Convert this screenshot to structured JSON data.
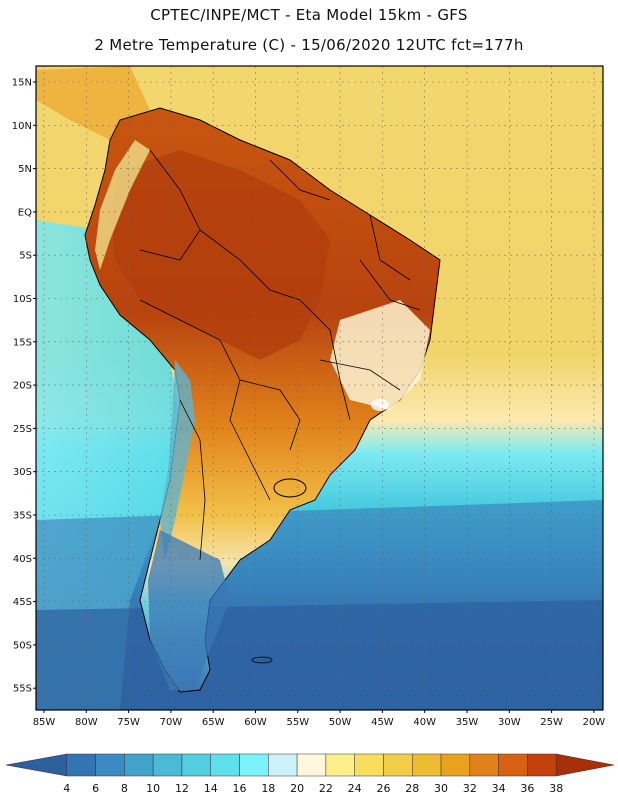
{
  "header": {
    "title_line1": "CPTEC/INPE/MCT -   Eta Model 15km - GFS",
    "title_line2": "2 Metre Temperature (C) - 15/06/2020 12UTC fct=177h"
  },
  "map": {
    "lat_labels": [
      "15N",
      "10N",
      "5N",
      "EQ",
      "5S",
      "10S",
      "15S",
      "20S",
      "25S",
      "30S",
      "35S",
      "40S",
      "45S",
      "50S",
      "55S"
    ],
    "lon_labels": [
      "85W",
      "80W",
      "75W",
      "70W",
      "65W",
      "60W",
      "55W",
      "50W",
      "45W",
      "40W",
      "35W",
      "30W",
      "25W",
      "20W"
    ]
  },
  "colorbar": {
    "values": [
      "4",
      "6",
      "8",
      "10",
      "12",
      "14",
      "16",
      "18",
      "20",
      "22",
      "24",
      "26",
      "28",
      "30",
      "32",
      "34",
      "36",
      "38"
    ],
    "colors": [
      "#2c5f9e",
      "#3474b2",
      "#3b8ac2",
      "#41a2cc",
      "#4bbad6",
      "#53cde0",
      "#5ee0ea",
      "#7af2f7",
      "#cdf3fa",
      "#fff7dc",
      "#fdf08a",
      "#f8de5c",
      "#f2cd4a",
      "#eebc33",
      "#e8a21e",
      "#e2811a",
      "#d96012",
      "#c4400c",
      "#a82f0a"
    ]
  },
  "colors": {
    "ocean_cold": "#2f62a6",
    "ocean_mid": "#4fd6e4",
    "ocean_warm": "#f2d070",
    "land_hot": "#b8430e",
    "land_warm": "#e2851c",
    "border": "#000000"
  }
}
